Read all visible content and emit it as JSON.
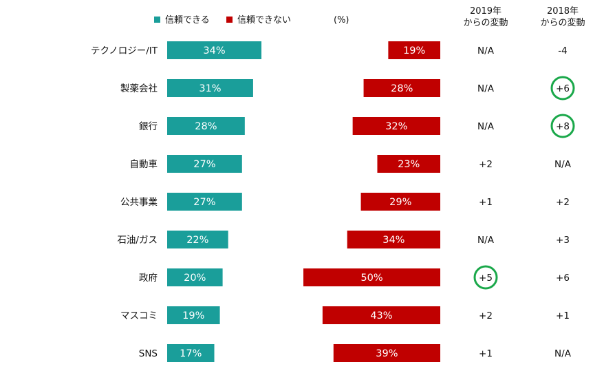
{
  "chart_data": {
    "type": "bar",
    "legend": {
      "trust_label": "信頼できる",
      "distrust_label": "信頼できない",
      "unit": "(%)",
      "position": "top"
    },
    "columns": {
      "change_2019": "2019年\nからの変動",
      "change_2018": "2018年\nからの変動"
    },
    "categories": [
      "テクノロジー/IT",
      "製薬会社",
      "銀行",
      "自動車",
      "公共事業",
      "石油/ガス",
      "政府",
      "マスコミ",
      "SNS"
    ],
    "series": [
      {
        "name": "信頼できる",
        "values": [
          34,
          31,
          28,
          27,
          27,
          22,
          20,
          19,
          17
        ],
        "labels": [
          "34%",
          "31%",
          "28%",
          "27%",
          "27%",
          "22%",
          "20%",
          "19%",
          "17%"
        ]
      },
      {
        "name": "信頼できない",
        "values": [
          19,
          28,
          32,
          23,
          29,
          34,
          50,
          43,
          39
        ],
        "labels": [
          "19%",
          "28%",
          "32%",
          "23%",
          "29%",
          "34%",
          "50%",
          "43%",
          "39%"
        ]
      }
    ],
    "change_2019": [
      "N/A",
      "N/A",
      "N/A",
      "+2",
      "+1",
      "N/A",
      "+5",
      "+2",
      "+1"
    ],
    "change_2018": [
      "-4",
      "+6",
      "+8",
      "N/A",
      "+2",
      "+3",
      "+6",
      "+1",
      "N/A"
    ],
    "highlighted": [
      {
        "column": "change_2019",
        "index": 6
      },
      {
        "column": "change_2018",
        "index": 1
      },
      {
        "column": "change_2018",
        "index": 2
      }
    ],
    "colors": {
      "trust": "#1a9e9a",
      "distrust": "#c00000",
      "highlight": "#1aa84a"
    }
  }
}
